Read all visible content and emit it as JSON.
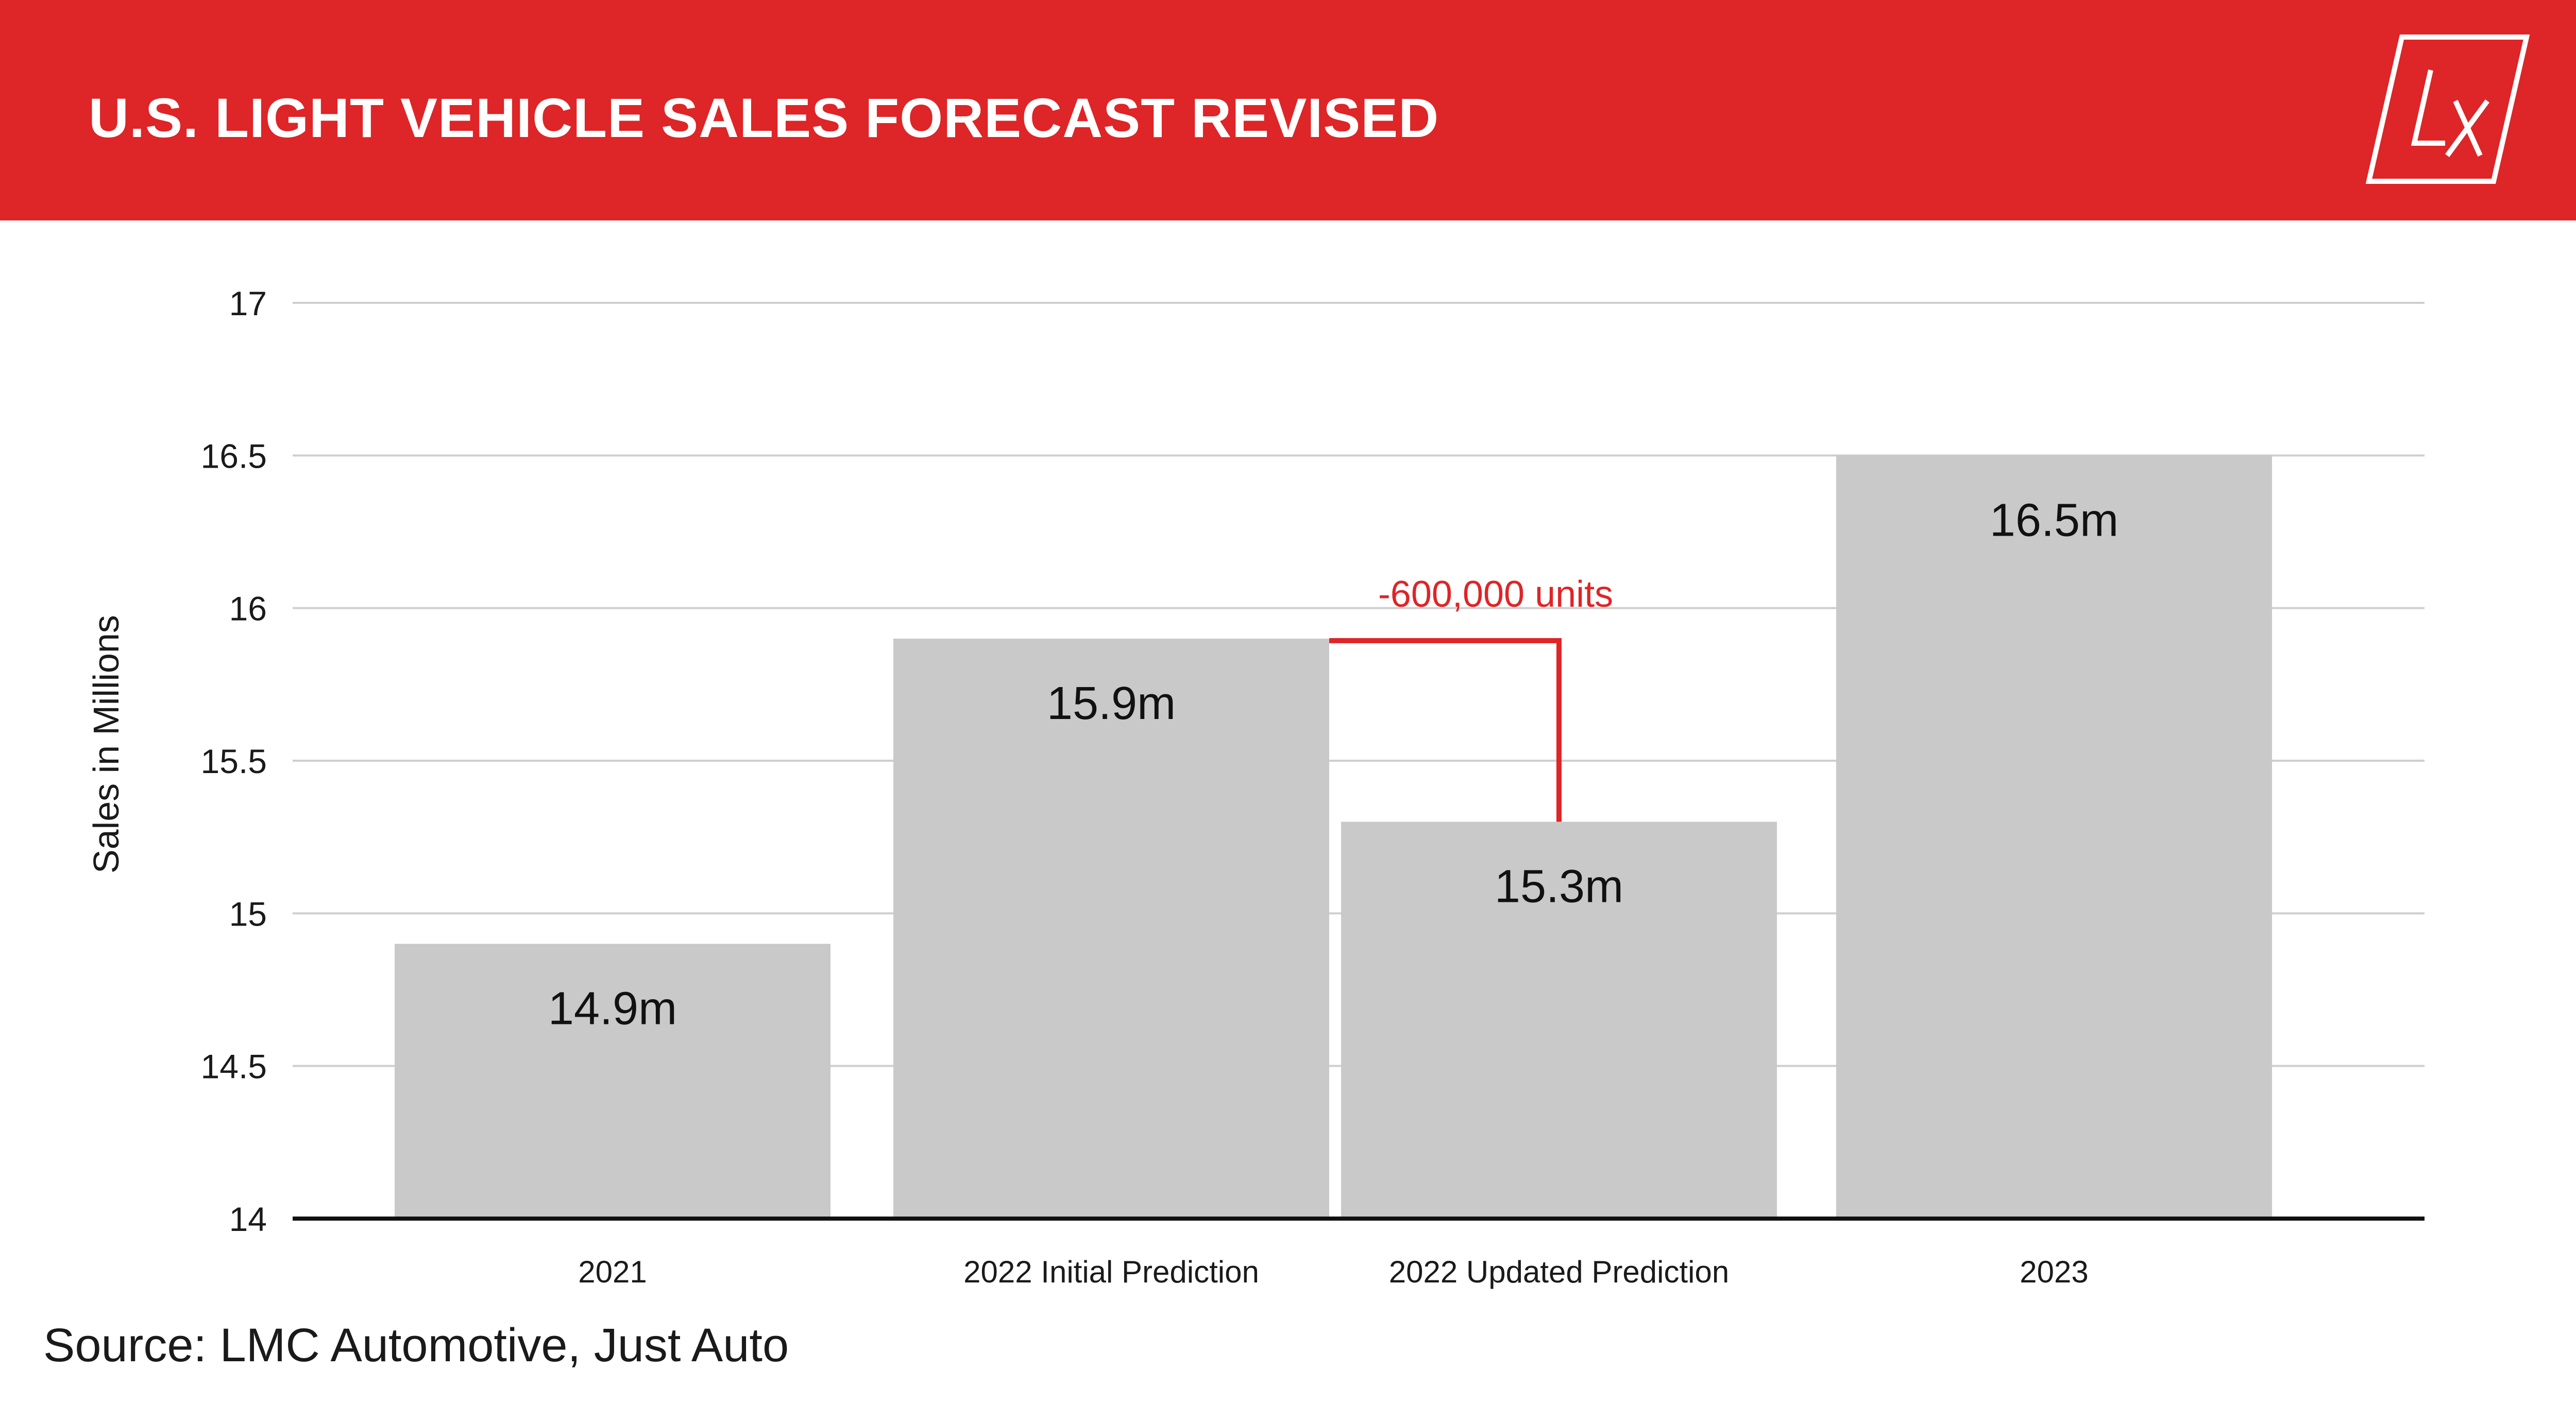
{
  "header": {
    "title": "U.S. LIGHT VEHICLE SALES FORECAST REVISED",
    "logo_text": "LX",
    "background_color": "#de2527"
  },
  "chart_data": {
    "type": "bar",
    "categories": [
      "2021",
      "2022 Initial Prediction",
      "2022 Updated Prediction",
      "2023"
    ],
    "values": [
      14.9,
      15.9,
      15.3,
      16.5
    ],
    "data_labels": [
      "14.9m",
      "15.9m",
      "15.3m",
      "16.5m"
    ],
    "ylabel": "Sales in Millions",
    "xlabel": "",
    "ylim": [
      14,
      17
    ],
    "yticks": [
      14,
      14.5,
      15,
      15.5,
      16,
      16.5,
      17
    ],
    "ytick_labels": [
      "14",
      "14.5",
      "15",
      "15.5",
      "16",
      "16.5",
      "17"
    ],
    "grid": true,
    "bar_color": "#c9c9c9",
    "annotation": {
      "text": "-600,000 units",
      "from_category": "2022 Initial Prediction",
      "to_category": "2022 Updated Prediction",
      "color": "#de2527"
    }
  },
  "footer": {
    "source": "Source: LMC Automotive, Just Auto"
  }
}
